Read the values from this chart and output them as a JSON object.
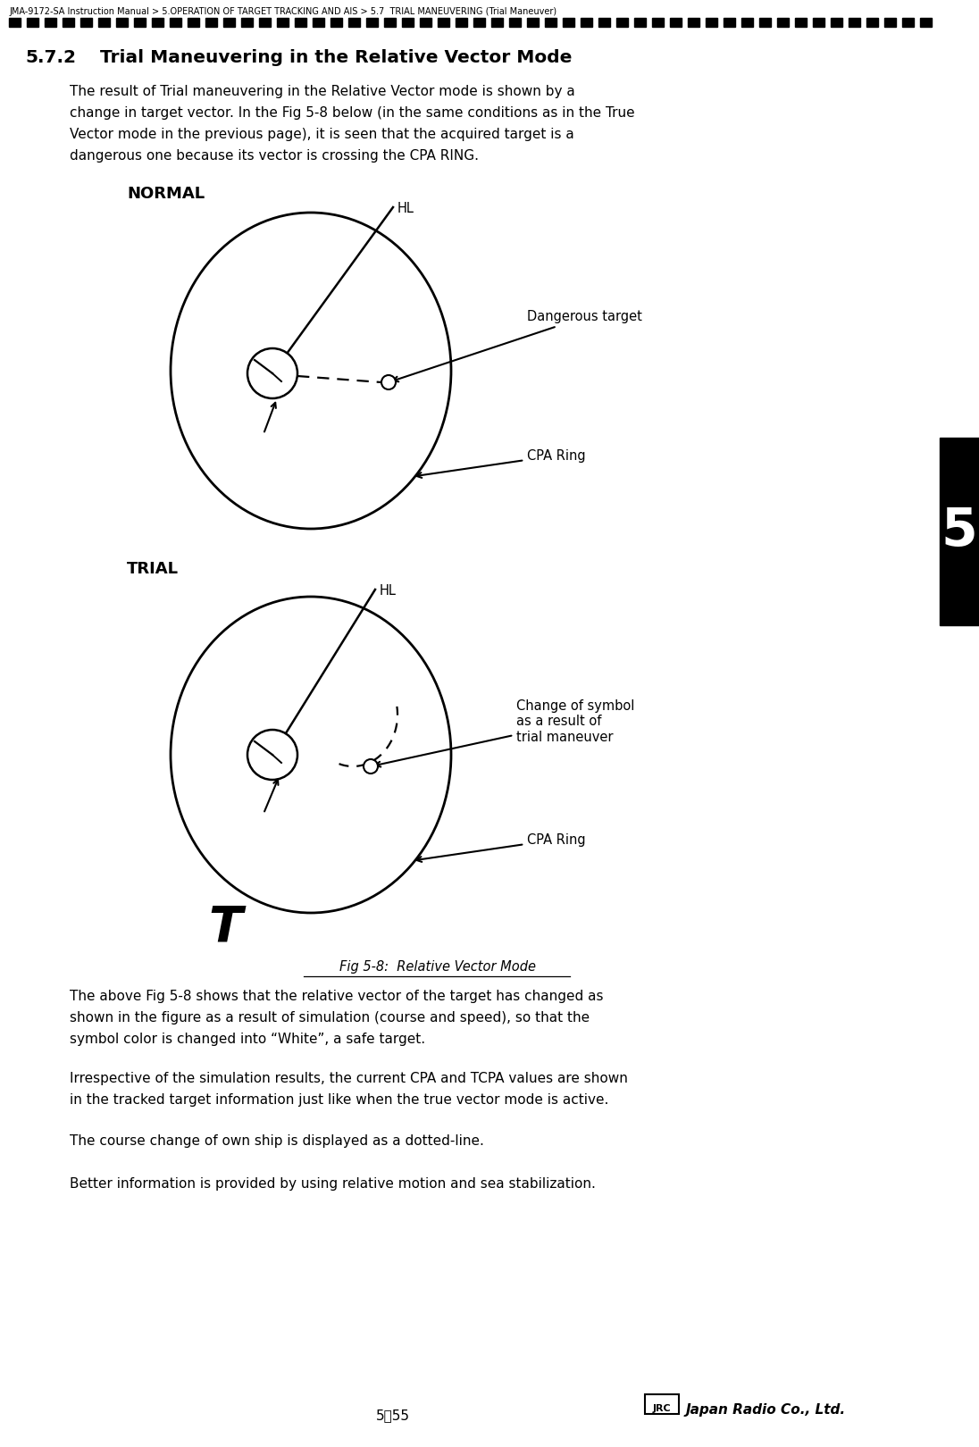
{
  "page_title": "JMA-9172-SA Instruction Manual > 5.OPERATION OF TARGET TRACKING AND AIS > 5.7  TRIAL MANEUVERING (Trial Maneuver)",
  "section": "5.7.2",
  "section_title": "Trial Maneuvering in the Relative Vector Mode",
  "para1_lines": [
    "The result of Trial maneuvering in the Relative Vector mode is shown by a",
    "change in target vector. In the Fig 5-8 below (in the same conditions as in the True",
    "Vector mode in the previous page), it is seen that the acquired target is a",
    "dangerous one because its vector is crossing the CPA RING."
  ],
  "label_normal": "NORMAL",
  "label_trial": "TRIAL",
  "label_hl": "HL",
  "label_dangerous": "Dangerous target",
  "label_change_symbol_l1": "Change of symbol",
  "label_change_symbol_l2": "as a result of",
  "label_change_symbol_l3": "trial maneuver",
  "label_cpa_ring": "CPA Ring",
  "label_T": "T",
  "fig_caption": "Fig 5-8:  Relative Vector Mode",
  "para2_lines": [
    "The above Fig 5-8 shows that the relative vector of the target has changed as",
    "shown in the figure as a result of simulation (course and speed), so that the",
    "symbol color is changed into “White”, a safe target."
  ],
  "para3_lines": [
    "Irrespective of the simulation results, the current CPA and TCPA values are shown",
    "in the tracked target information just like when the true vector mode is active."
  ],
  "para4": "The course change of own ship is displayed as a dotted-line.",
  "para5": "Better information is provided by using relative motion and sea stabilization.",
  "footer_page": "5－55",
  "tab_number": "5",
  "bg_color": "#ffffff",
  "text_color": "#000000"
}
